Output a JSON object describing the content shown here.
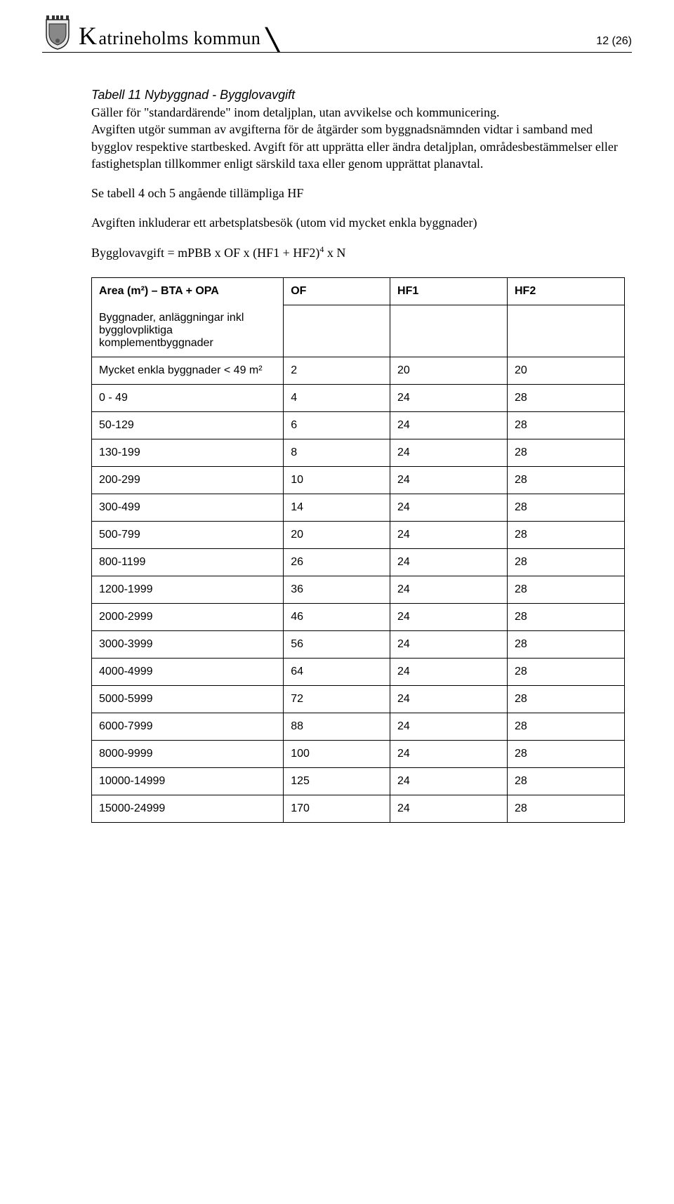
{
  "header": {
    "municipality_prefix": "K",
    "municipality_rest": "atrineholms kommun",
    "page_number": "12 (26)"
  },
  "title": "Tabell 11 Nybyggnad - Bygglovavgift",
  "intro_line": "Gäller för \"standardärende\" inom detaljplan, utan avvikelse och kommunicering.",
  "para1": "Avgiften utgör summan av avgifterna för de åtgärder som byggnadsnämnden vidtar i samband med bygglov respektive startbesked. Avgift för att upprätta eller ändra detaljplan, områdesbestämmelser eller fastighetsplan tillkommer enligt särskild taxa eller genom upprättat planavtal.",
  "para2": "Se tabell 4 och 5 angående tillämpliga HF",
  "para3": "Avgiften inkluderar ett arbetsplatsbesök (utom vid mycket enkla byggnader)",
  "formula_prefix": "Bygglovavgift = mPBB x OF x (HF1 + HF2)",
  "formula_exp": "4",
  "formula_suffix": " x N",
  "table": {
    "headers": {
      "area": "Area (m²) – BTA + OPA",
      "of": "OF",
      "hf1": "HF1",
      "hf2": "HF2"
    },
    "subheader": "Byggnader, anläggningar inkl bygglovpliktiga komplementbyggnader",
    "simple_row_label": "Mycket enkla byggnader < 49 m²",
    "simple_row": {
      "of": "2",
      "hf1": "20",
      "hf2": "20"
    },
    "rows": [
      {
        "area": "0 - 49",
        "of": "4",
        "hf1": "24",
        "hf2": "28"
      },
      {
        "area": "50-129",
        "of": "6",
        "hf1": "24",
        "hf2": "28"
      },
      {
        "area": "130-199",
        "of": "8",
        "hf1": "24",
        "hf2": "28"
      },
      {
        "area": "200-299",
        "of": "10",
        "hf1": "24",
        "hf2": "28"
      },
      {
        "area": "300-499",
        "of": "14",
        "hf1": "24",
        "hf2": "28"
      },
      {
        "area": "500-799",
        "of": "20",
        "hf1": "24",
        "hf2": "28"
      },
      {
        "area": "800-1199",
        "of": "26",
        "hf1": "24",
        "hf2": "28"
      },
      {
        "area": "1200-1999",
        "of": "36",
        "hf1": "24",
        "hf2": "28"
      },
      {
        "area": "2000-2999",
        "of": "46",
        "hf1": "24",
        "hf2": "28"
      },
      {
        "area": "3000-3999",
        "of": "56",
        "hf1": "24",
        "hf2": "28"
      },
      {
        "area": "4000-4999",
        "of": "64",
        "hf1": "24",
        "hf2": "28"
      },
      {
        "area": "5000-5999",
        "of": "72",
        "hf1": "24",
        "hf2": "28"
      },
      {
        "area": "6000-7999",
        "of": "88",
        "hf1": "24",
        "hf2": "28"
      },
      {
        "area": "8000-9999",
        "of": "100",
        "hf1": "24",
        "hf2": "28"
      },
      {
        "area": "10000-14999",
        "of": "125",
        "hf1": "24",
        "hf2": "28"
      },
      {
        "area": "15000-24999",
        "of": "170",
        "hf1": "24",
        "hf2": "28"
      }
    ]
  }
}
